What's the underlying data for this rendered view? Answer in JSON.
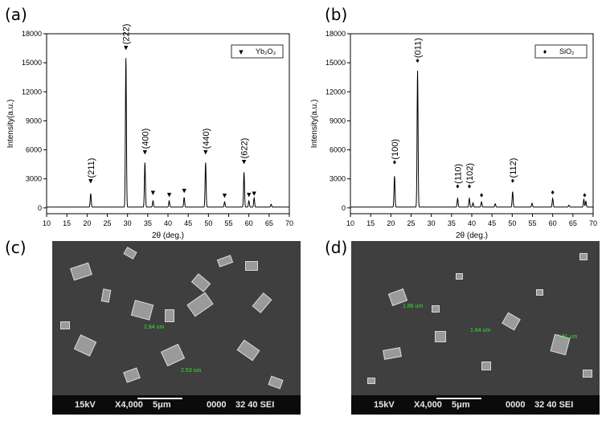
{
  "panels": {
    "a": "(a)",
    "b": "(b)",
    "c": "(c)",
    "d": "(d)"
  },
  "chart_data": [
    {
      "type": "line",
      "xlabel": "2θ (deg.)",
      "ylabel": "Intensity(a.u.)",
      "xlim": [
        10,
        70
      ],
      "ylim": [
        -600,
        18000
      ],
      "xticks": [
        10,
        15,
        20,
        25,
        30,
        35,
        40,
        45,
        50,
        55,
        60,
        65,
        70
      ],
      "yticks": [
        0,
        3000,
        6000,
        9000,
        12000,
        15000,
        18000
      ],
      "legend": {
        "marker": "▼",
        "label": "Yb₂O₃",
        "placement": "top-right"
      },
      "peaks": [
        {
          "x": 20.9,
          "y": 1400
        },
        {
          "x": 29.6,
          "y": 15400
        },
        {
          "x": 34.3,
          "y": 4600
        },
        {
          "x": 36.3,
          "y": 650
        },
        {
          "x": 40.3,
          "y": 650
        },
        {
          "x": 44.0,
          "y": 1000
        },
        {
          "x": 49.3,
          "y": 4600
        },
        {
          "x": 54.0,
          "y": 550
        },
        {
          "x": 58.8,
          "y": 3600
        },
        {
          "x": 60.0,
          "y": 650
        },
        {
          "x": 61.3,
          "y": 950
        },
        {
          "x": 65.5,
          "y": 300
        }
      ],
      "markers": [
        {
          "x": 20.9,
          "y": 2600,
          "label": "(211)"
        },
        {
          "x": 29.6,
          "y": 16400,
          "label": "(222)"
        },
        {
          "x": 34.3,
          "y": 5600,
          "label": "(400)"
        },
        {
          "x": 36.3,
          "y": 1400,
          "label": ""
        },
        {
          "x": 40.3,
          "y": 1200,
          "label": ""
        },
        {
          "x": 44.0,
          "y": 1600,
          "label": ""
        },
        {
          "x": 49.3,
          "y": 5600,
          "label": "(440)"
        },
        {
          "x": 54.0,
          "y": 1100,
          "label": ""
        },
        {
          "x": 58.8,
          "y": 4600,
          "label": "(622)"
        },
        {
          "x": 60.0,
          "y": 1200,
          "label": ""
        },
        {
          "x": 61.3,
          "y": 1300,
          "label": ""
        }
      ]
    },
    {
      "type": "line",
      "xlabel": "2θ (deg.)",
      "ylabel": "Intensity(a.u.)",
      "xlim": [
        10,
        70
      ],
      "ylim": [
        -600,
        18000
      ],
      "xticks": [
        10,
        15,
        20,
        25,
        30,
        35,
        40,
        45,
        50,
        55,
        60,
        65,
        70
      ],
      "yticks": [
        0,
        3000,
        6000,
        9000,
        12000,
        15000,
        18000
      ],
      "legend": {
        "marker": "♦",
        "label": "SiO₂",
        "placement": "top-right"
      },
      "peaks": [
        {
          "x": 20.9,
          "y": 3200
        },
        {
          "x": 26.6,
          "y": 14100
        },
        {
          "x": 36.5,
          "y": 900
        },
        {
          "x": 39.4,
          "y": 900
        },
        {
          "x": 40.3,
          "y": 450
        },
        {
          "x": 42.4,
          "y": 550
        },
        {
          "x": 45.8,
          "y": 350
        },
        {
          "x": 50.1,
          "y": 1600
        },
        {
          "x": 54.9,
          "y": 400
        },
        {
          "x": 60.0,
          "y": 900
        },
        {
          "x": 64.0,
          "y": 200
        },
        {
          "x": 67.7,
          "y": 800
        },
        {
          "x": 68.2,
          "y": 600
        }
      ],
      "markers": [
        {
          "x": 20.9,
          "y": 4500,
          "label": "(100)"
        },
        {
          "x": 26.6,
          "y": 15000,
          "label": "(011)"
        },
        {
          "x": 36.5,
          "y": 2000,
          "label": "(110)"
        },
        {
          "x": 39.4,
          "y": 2000,
          "label": "(102)"
        },
        {
          "x": 42.4,
          "y": 1100,
          "label": ""
        },
        {
          "x": 50.1,
          "y": 2600,
          "label": "(112)"
        },
        {
          "x": 60.0,
          "y": 1400,
          "label": ""
        },
        {
          "x": 67.9,
          "y": 1100,
          "label": ""
        }
      ]
    }
  ],
  "sem_images": [
    {
      "info": {
        "kv": "15kV",
        "mag": "X4,000",
        "scale": "5μm",
        "num": "0000",
        "wd": "32 40 SEI"
      },
      "measurements": [
        "2.84 um",
        "2.53 um"
      ]
    },
    {
      "info": {
        "kv": "15kV",
        "mag": "X4,000",
        "scale": "5μm",
        "num": "0000",
        "wd": "32 40 SEI"
      },
      "measurements": [
        "1.86 um",
        "1.64 um",
        "2.81 um"
      ]
    }
  ]
}
